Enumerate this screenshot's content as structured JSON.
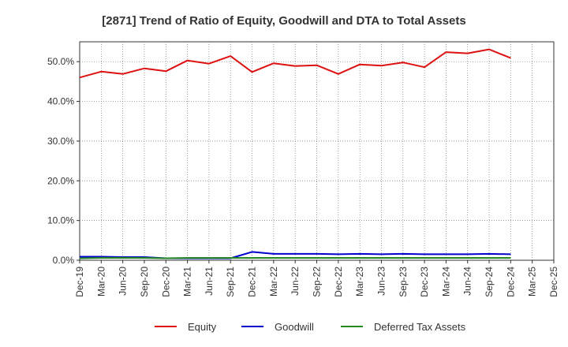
{
  "chart_data": {
    "type": "line",
    "title": "[2871]  Trend of Ratio of Equity, Goodwill and DTA to Total Assets",
    "xlabel": "",
    "ylabel": "",
    "ylim": [
      0,
      55
    ],
    "y_ticks": [
      "0.0%",
      "10.0%",
      "20.0%",
      "30.0%",
      "40.0%",
      "50.0%"
    ],
    "y_tick_values": [
      0,
      10,
      20,
      30,
      40,
      50
    ],
    "grid": true,
    "legend_position": "bottom",
    "x_tick_labels": [
      "Dec-19",
      "Mar-20",
      "Jun-20",
      "Sep-20",
      "Dec-20",
      "Mar-21",
      "Jun-21",
      "Sep-21",
      "Dec-21",
      "Mar-22",
      "Jun-22",
      "Sep-22",
      "Dec-22",
      "Mar-23",
      "Jun-23",
      "Sep-23",
      "Dec-23",
      "Mar-24",
      "Jun-24",
      "Sep-24",
      "Dec-24",
      "Mar-25",
      "Dec-25"
    ],
    "x": [
      "Dec-19",
      "Mar-20",
      "Jun-20",
      "Sep-20",
      "Dec-20",
      "Mar-21",
      "Jun-21",
      "Sep-21",
      "Dec-21",
      "Mar-22",
      "Jun-22",
      "Sep-22",
      "Dec-22",
      "Mar-23",
      "Jun-23",
      "Sep-23",
      "Dec-23",
      "Mar-24",
      "Jun-24",
      "Sep-24",
      "Dec-24"
    ],
    "series": [
      {
        "name": "Equity",
        "color": "#dd1111",
        "values": [
          46.0,
          47.5,
          46.9,
          48.3,
          47.6,
          50.3,
          49.5,
          51.4,
          47.4,
          49.6,
          48.9,
          49.1,
          46.9,
          49.3,
          49.0,
          49.8,
          48.6,
          52.4,
          52.1,
          53.1,
          50.9
        ]
      },
      {
        "name": "Goodwill",
        "color": "#0000cc",
        "values": [
          0.9,
          0.9,
          0.8,
          0.8,
          0.5,
          0.5,
          0.5,
          0.5,
          2.1,
          1.6,
          1.6,
          1.6,
          1.5,
          1.6,
          1.5,
          1.6,
          1.5,
          1.5,
          1.5,
          1.6,
          1.5
        ]
      },
      {
        "name": "Deferred Tax Assets",
        "color": "#228822",
        "values": [
          0.5,
          0.6,
          0.6,
          0.6,
          0.5,
          0.6,
          0.6,
          0.6,
          0.6,
          0.6,
          0.6,
          0.6,
          0.6,
          0.6,
          0.6,
          0.6,
          0.6,
          0.6,
          0.6,
          0.6,
          0.6
        ]
      }
    ]
  }
}
